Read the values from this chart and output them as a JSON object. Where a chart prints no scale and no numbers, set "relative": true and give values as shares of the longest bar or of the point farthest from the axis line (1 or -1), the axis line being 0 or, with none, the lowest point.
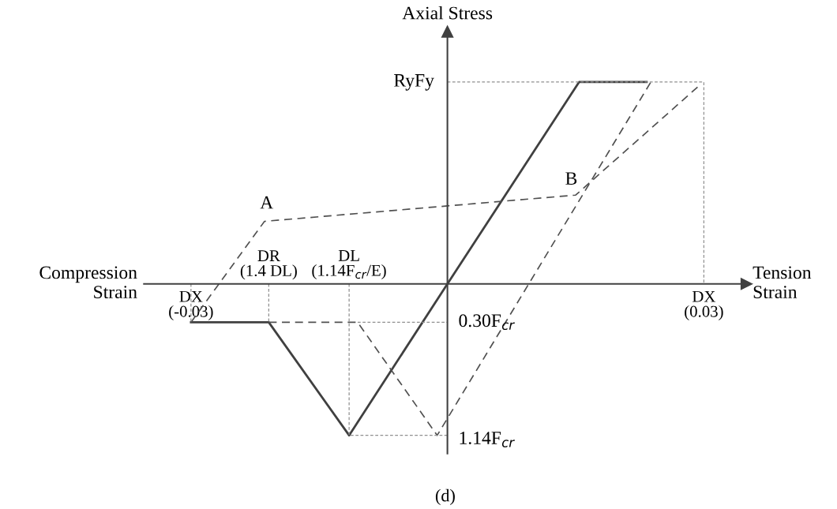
{
  "chart_data": {
    "type": "line",
    "relative": true,
    "title": "(d)",
    "xlabel": "Tension\nStrain",
    "ylabel": "Axial Stress",
    "xlim": [
      -0.0355,
      0.035
    ],
    "xticks": [
      {
        "value": -0.03,
        "label": "DX\n(-0.03)"
      },
      {
        "value": 0.03,
        "label": "DX\n(0.03)"
      }
    ],
    "series": [
      {
        "color": "#404040",
        "line_style": "solid",
        "x": [
          -0.03,
          -0.0209,
          -0.0115,
          0,
          0.0154,
          0.0233
        ],
        "values": [
          -0.19,
          -0.19,
          -0.75,
          0,
          1,
          1
        ]
      },
      {
        "color": "#505050",
        "line_style": "dashed",
        "x": [
          -0.03,
          -0.0214,
          0.015,
          0.0294
        ],
        "values": [
          -0.19,
          0.31,
          0.44,
          0.98
        ]
      },
      {
        "color": "#505050",
        "line_style": "dashed",
        "x": [
          -0.0209,
          -0.0105,
          -0.0012,
          0.0238
        ],
        "values": [
          -0.19,
          -0.19,
          -0.75,
          1
        ]
      },
      {
        "color": "#909090",
        "line_style": "dotted",
        "x": [
          0,
          0.03,
          0.03,
          null,
          -0.03,
          -0.03,
          null,
          -0.0209,
          -0.0209,
          null,
          -0.0115,
          -0.0115,
          0,
          null,
          -0.0105,
          0
        ],
        "values": [
          1,
          1,
          0,
          null,
          0,
          -0.19,
          null,
          0,
          -0.19,
          null,
          0,
          -0.75,
          -0.75,
          null,
          -0.19,
          -0.19
        ]
      }
    ],
    "annotations": [
      "Compression\nStrain",
      {
        "text": "RyFy",
        "x": 0,
        "y": 1
      },
      {
        "text": "0.30F$_{cr}$",
        "x": 0,
        "y": -0.19
      },
      {
        "text": "1.14F$_{cr}$",
        "x": 0,
        "y": -0.75
      },
      {
        "text": "A",
        "x": -0.0214,
        "y": 0.31
      },
      {
        "text": "B",
        "x": 0.015,
        "y": 0.44
      },
      {
        "text": "DR\n(1.4 DL)",
        "x": -0.0209,
        "y": 0
      },
      {
        "text": "DL\n(1.14F$_{cr}$/E)",
        "x": -0.0115,
        "y": 0
      }
    ]
  }
}
